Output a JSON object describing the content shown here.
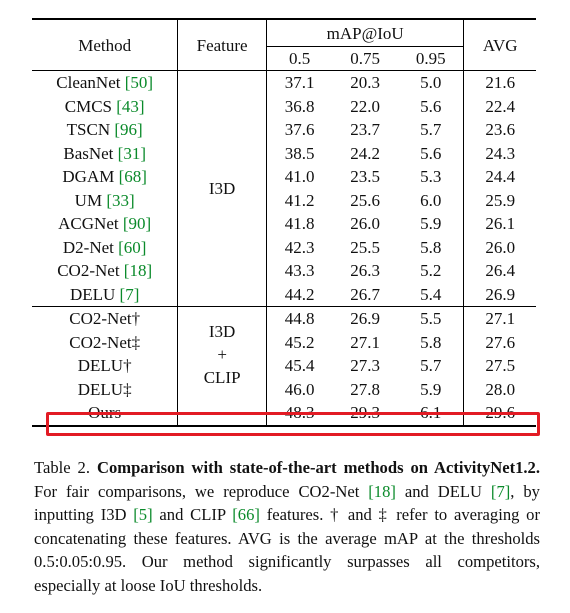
{
  "table": {
    "headers": {
      "method": "Method",
      "feature": "Feature",
      "map_group": "mAP@IoU",
      "avg": "AVG",
      "thresholds": [
        "0.5",
        "0.75",
        "0.95"
      ]
    },
    "group1": {
      "feature": "I3D",
      "rows": [
        {
          "name": "CleanNet",
          "cite": "50",
          "v05": "37.1",
          "v075": "20.3",
          "v095": "5.0",
          "avg": "21.6"
        },
        {
          "name": "CMCS",
          "cite": "43",
          "v05": "36.8",
          "v075": "22.0",
          "v095": "5.6",
          "avg": "22.4"
        },
        {
          "name": "TSCN",
          "cite": "96",
          "v05": "37.6",
          "v075": "23.7",
          "v095": "5.7",
          "avg": "23.6"
        },
        {
          "name": "BasNet",
          "cite": "31",
          "v05": "38.5",
          "v075": "24.2",
          "v095": "5.6",
          "avg": "24.3"
        },
        {
          "name": "DGAM",
          "cite": "68",
          "v05": "41.0",
          "v075": "23.5",
          "v095": "5.3",
          "avg": "24.4"
        },
        {
          "name": "UM",
          "cite": "33",
          "v05": "41.2",
          "v075": "25.6",
          "v095": "6.0",
          "avg": "25.9"
        },
        {
          "name": "ACGNet",
          "cite": "90",
          "v05": "41.8",
          "v075": "26.0",
          "v095": "5.9",
          "avg": "26.1"
        },
        {
          "name": "D2-Net",
          "cite": "60",
          "v05": "42.3",
          "v075": "25.5",
          "v095": "5.8",
          "avg": "26.0"
        },
        {
          "name": "CO2-Net",
          "cite": "18",
          "v05": "43.3",
          "v075": "26.3",
          "v095": "5.2",
          "avg": "26.4"
        },
        {
          "name": "DELU",
          "cite": "7",
          "v05": "44.2",
          "v075": "26.7",
          "v095": "5.4",
          "avg": "26.9"
        }
      ]
    },
    "group2": {
      "feature_lines": [
        "I3D",
        "+",
        "CLIP"
      ],
      "rows": [
        {
          "name": "CO2-Net†",
          "v05": "44.8",
          "v075": "26.9",
          "v095": "5.5",
          "avg": "27.1"
        },
        {
          "name": "CO2-Net‡",
          "v05": "45.2",
          "v075": "27.1",
          "v095": "5.8",
          "avg": "27.6"
        },
        {
          "name": "DELU†",
          "v05": "45.4",
          "v075": "27.3",
          "v095": "5.7",
          "avg": "27.5"
        },
        {
          "name": "DELU‡",
          "v05": "46.0",
          "v075": "27.8",
          "v095": "5.9",
          "avg": "28.0"
        },
        {
          "name": "Ours",
          "v05": "48.3",
          "v075": "29.3",
          "v095": "6.1",
          "avg": "29.6"
        }
      ]
    }
  },
  "caption": {
    "label": "Table 2.",
    "title": "Comparison with state-of-the-art methods on ActivityNet1.2.",
    "s1": "For fair comparisons, we reproduce CO2-Net",
    "c1": "[18]",
    "s2": "and DELU",
    "c2": "[7]",
    "s3": ", by inputting I3D",
    "c3": "[5]",
    "s4": "and CLIP",
    "c4": "[66]",
    "s5": "features. † and ‡ refer to averaging or concatenating these features. AVG is the average mAP at the thresholds 0.5:0.05:0.95. Our method significantly surpasses all competitors, especially at loose IoU thresholds."
  },
  "colors": {
    "citation": "#0a8a2a",
    "highlight": "#e21b24"
  }
}
